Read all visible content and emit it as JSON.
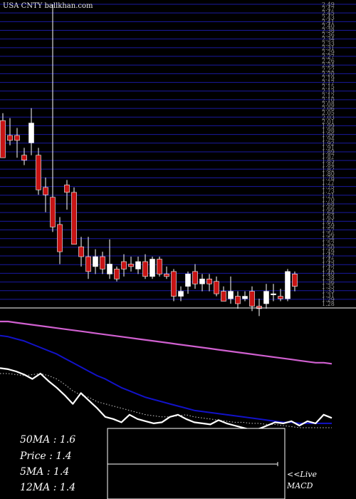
{
  "header": {
    "site_label": "USA CNTY ballkhan.com"
  },
  "colors": {
    "bg": "#000000",
    "grid": "#1a1aa0",
    "up": "#ffffff",
    "down": "#c81414",
    "ma_long": "#d060d0",
    "ma_mid": "#1212c8",
    "price_line": "#ffffff",
    "price_dots": "#cccccc"
  },
  "chart_data": [
    {
      "type": "candlestick",
      "title": "",
      "y_tick_labels": [
        "2.49",
        "2.47",
        "2.45",
        "2.43",
        "2.41",
        "2.40",
        "2.38",
        "2.36",
        "2.34",
        "2.33",
        "2.31",
        "2.29",
        "2.27",
        "2.26",
        "2.24",
        "2.22",
        "2.20",
        "2.19",
        "2.17",
        "2.15",
        "2.13",
        "2.12",
        "2.10",
        "2.08",
        "2.06",
        "2.05",
        "2.03",
        "2.01",
        "1.99",
        "1.98",
        "1.96",
        "1.94",
        "1.92",
        "1.91",
        "1.89",
        "1.87",
        "1.85",
        "1.84",
        "1.82",
        "1.80",
        "1.78",
        "1.77",
        "1.75",
        "1.73",
        "1.71",
        "1.70",
        "1.68",
        "1.66",
        "1.64",
        "1.63",
        "1.61",
        "1.59",
        "1.57",
        "1.56",
        "1.54",
        "1.52",
        "1.50",
        "1.49",
        "1.47",
        "1.45",
        "1.43",
        "1.42",
        "1.40",
        "1.38",
        "1.36",
        "1.35",
        "1.33",
        "1.31",
        "1.29",
        "1.28"
      ],
      "ylim": [
        1.28,
        2.49
      ],
      "candles": [
        {
          "o": 2.02,
          "h": 2.05,
          "l": 1.88,
          "c": 1.87
        },
        {
          "o": 1.96,
          "h": 2.03,
          "l": 1.92,
          "c": 1.94
        },
        {
          "o": 1.96,
          "h": 1.99,
          "l": 1.87,
          "c": 1.94
        },
        {
          "o": 1.88,
          "h": 1.91,
          "l": 1.84,
          "c": 1.86
        },
        {
          "o": 1.93,
          "h": 2.07,
          "l": 1.88,
          "c": 2.01
        },
        {
          "o": 1.88,
          "h": 1.91,
          "l": 1.72,
          "c": 1.74
        },
        {
          "o": 1.75,
          "h": 1.79,
          "l": 1.65,
          "c": 1.72
        },
        {
          "o": 1.71,
          "h": 2.49,
          "l": 1.57,
          "c": 1.59
        },
        {
          "o": 1.6,
          "h": 1.63,
          "l": 1.44,
          "c": 1.49
        },
        {
          "o": 1.76,
          "h": 1.78,
          "l": 1.66,
          "c": 1.73
        },
        {
          "o": 1.73,
          "h": 1.75,
          "l": 1.52,
          "c": 1.52
        },
        {
          "o": 1.51,
          "h": 1.55,
          "l": 1.43,
          "c": 1.47
        },
        {
          "o": 1.47,
          "h": 1.55,
          "l": 1.38,
          "c": 1.41
        },
        {
          "o": 1.43,
          "h": 1.5,
          "l": 1.4,
          "c": 1.47
        },
        {
          "o": 1.47,
          "h": 1.49,
          "l": 1.4,
          "c": 1.42
        },
        {
          "o": 1.4,
          "h": 1.54,
          "l": 1.38,
          "c": 1.44
        },
        {
          "o": 1.42,
          "h": 1.43,
          "l": 1.37,
          "c": 1.38
        },
        {
          "o": 1.45,
          "h": 1.48,
          "l": 1.39,
          "c": 1.42
        },
        {
          "o": 1.44,
          "h": 1.47,
          "l": 1.41,
          "c": 1.43
        },
        {
          "o": 1.42,
          "h": 1.47,
          "l": 1.4,
          "c": 1.45
        },
        {
          "o": 1.45,
          "h": 1.48,
          "l": 1.38,
          "c": 1.39
        },
        {
          "o": 1.39,
          "h": 1.47,
          "l": 1.38,
          "c": 1.46
        },
        {
          "o": 1.46,
          "h": 1.47,
          "l": 1.39,
          "c": 1.4
        },
        {
          "o": 1.4,
          "h": 1.43,
          "l": 1.38,
          "c": 1.39
        },
        {
          "o": 1.41,
          "h": 1.42,
          "l": 1.29,
          "c": 1.31
        },
        {
          "o": 1.31,
          "h": 1.35,
          "l": 1.29,
          "c": 1.33
        },
        {
          "o": 1.35,
          "h": 1.41,
          "l": 1.32,
          "c": 1.4
        },
        {
          "o": 1.41,
          "h": 1.44,
          "l": 1.34,
          "c": 1.36
        },
        {
          "o": 1.36,
          "h": 1.4,
          "l": 1.33,
          "c": 1.38
        },
        {
          "o": 1.38,
          "h": 1.4,
          "l": 1.33,
          "c": 1.36
        },
        {
          "o": 1.37,
          "h": 1.39,
          "l": 1.31,
          "c": 1.32
        },
        {
          "o": 1.33,
          "h": 1.35,
          "l": 1.29,
          "c": 1.29
        },
        {
          "o": 1.3,
          "h": 1.39,
          "l": 1.28,
          "c": 1.33
        },
        {
          "o": 1.31,
          "h": 1.33,
          "l": 1.26,
          "c": 1.28
        },
        {
          "o": 1.3,
          "h": 1.33,
          "l": 1.29,
          "c": 1.31
        },
        {
          "o": 1.33,
          "h": 1.35,
          "l": 1.25,
          "c": 1.27
        },
        {
          "o": 1.27,
          "h": 1.3,
          "l": 1.23,
          "c": 1.26
        },
        {
          "o": 1.28,
          "h": 1.36,
          "l": 1.26,
          "c": 1.33
        },
        {
          "o": 1.32,
          "h": 1.36,
          "l": 1.29,
          "c": 1.32
        },
        {
          "o": 1.31,
          "h": 1.34,
          "l": 1.29,
          "c": 1.3
        },
        {
          "o": 1.3,
          "h": 1.42,
          "l": 1.29,
          "c": 1.41
        },
        {
          "o": 1.4,
          "h": 1.41,
          "l": 1.33,
          "c": 1.35
        }
      ]
    },
    {
      "type": "line",
      "title": "",
      "ylim": [
        0,
        1
      ],
      "series": [
        {
          "values": [
            0.98,
            0.98,
            0.97,
            0.96,
            0.95,
            0.94,
            0.93,
            0.92,
            0.91,
            0.9,
            0.89,
            0.88,
            0.87,
            0.86,
            0.85,
            0.84,
            0.83,
            0.82,
            0.81,
            0.8,
            0.79,
            0.78,
            0.77,
            0.76,
            0.75,
            0.74,
            0.73,
            0.72,
            0.71,
            0.7,
            0.69,
            0.68,
            0.67,
            0.66,
            0.65,
            0.64,
            0.63,
            0.62,
            0.61,
            0.6,
            0.6,
            0.59
          ]
        },
        {
          "values": [
            0.85,
            0.84,
            0.82,
            0.8,
            0.77,
            0.74,
            0.71,
            0.68,
            0.64,
            0.6,
            0.56,
            0.52,
            0.48,
            0.45,
            0.41,
            0.37,
            0.34,
            0.31,
            0.28,
            0.26,
            0.24,
            0.22,
            0.2,
            0.18,
            0.16,
            0.15,
            0.14,
            0.13,
            0.12,
            0.11,
            0.1,
            0.09,
            0.08,
            0.07,
            0.06,
            0.05,
            0.05,
            0.04,
            0.04,
            0.04,
            0.04,
            0.04
          ]
        },
        {
          "values": [
            0.5,
            0.5,
            0.49,
            0.48,
            0.49,
            0.5,
            0.48,
            0.45,
            0.4,
            0.34,
            0.3,
            0.28,
            0.24,
            0.22,
            0.2,
            0.18,
            0.16,
            0.14,
            0.12,
            0.11,
            0.1,
            0.1,
            0.11,
            0.12,
            0.1,
            0.09,
            0.08,
            0.07,
            0.06,
            0.05,
            0.05,
            0.04,
            0.04,
            0.03,
            0.03,
            0.02,
            0.01,
            0.0,
            0.0,
            0.0,
            0.0,
            0.0
          ]
        },
        {
          "values": [
            0.55,
            0.54,
            0.52,
            0.49,
            0.45,
            0.5,
            0.43,
            0.37,
            0.3,
            0.22,
            0.32,
            0.25,
            0.18,
            0.1,
            0.08,
            0.05,
            0.12,
            0.08,
            0.06,
            0.04,
            0.05,
            0.1,
            0.12,
            0.08,
            0.05,
            0.04,
            0.03,
            0.07,
            0.04,
            0.02,
            0.0,
            -0.02,
            -0.01,
            0.02,
            0.05,
            0.04,
            0.06,
            0.02,
            0.06,
            0.04,
            0.12,
            0.09
          ]
        }
      ]
    }
  ],
  "legend": {
    "ma50": "50MA : 1.6",
    "price": "Price   : 1.4",
    "ma5": "5MA : 1.4",
    "ma12": "12MA : 1.4"
  },
  "macd_panel": {
    "live_label": "<<Live",
    "macd_label": "MACD"
  }
}
